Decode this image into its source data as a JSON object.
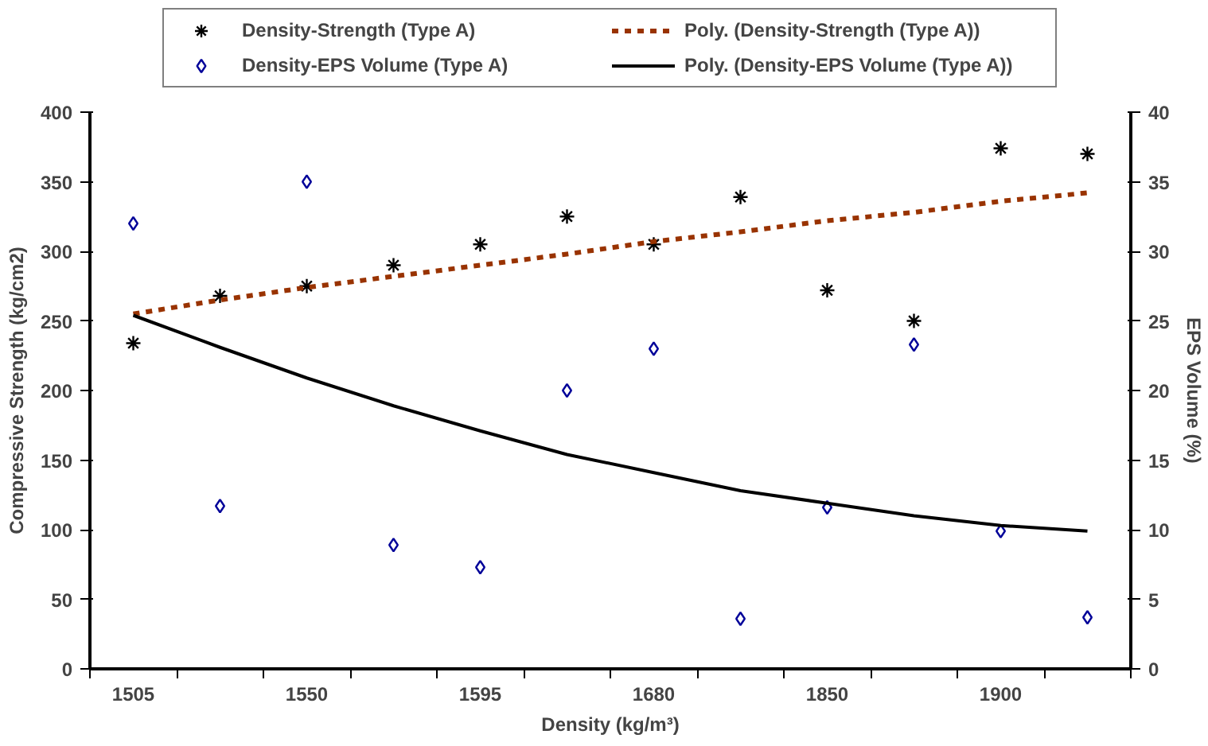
{
  "chart_data": {
    "type": "scatter",
    "xlabel": "Density (kg/m³)",
    "ylabel": "Compressive Strength (kg/cm2)",
    "y2label": "EPS Volume (%)",
    "categories": [
      "1505",
      null,
      "1550",
      null,
      "1595",
      null,
      "1680",
      null,
      "1850",
      null,
      "1900",
      null
    ],
    "series": [
      {
        "name": "Density-Strength (Type A)",
        "marker": "cross",
        "color": "#000000",
        "values": [
          234,
          268,
          275,
          290,
          305,
          325,
          305,
          339,
          272,
          250,
          374,
          370
        ]
      },
      {
        "name": "Density-EPS Volume (Type A)",
        "marker": "diamond",
        "color": "#000099",
        "axis": "y2",
        "values": [
          32,
          11.7,
          35,
          8.9,
          7.3,
          20,
          23,
          3.6,
          11.6,
          23.3,
          9.9,
          3.7
        ]
      },
      {
        "name": "Poly. (Density-Strength (Type A))",
        "type": "line",
        "line_style": "dashed",
        "color": "#993300",
        "values": [
          255,
          265,
          274,
          282,
          290,
          298,
          307,
          314,
          322,
          328,
          336,
          342
        ]
      },
      {
        "name": "Poly. (Density-EPS Volume (Type A))",
        "type": "line",
        "line_style": "solid",
        "color": "#000000",
        "axis": "y2",
        "values": [
          25.4,
          23.1,
          20.9,
          18.9,
          17.1,
          15.4,
          14.1,
          12.8,
          11.9,
          11.0,
          10.3,
          9.9
        ]
      }
    ],
    "ylim": [
      0,
      400
    ],
    "yticks": [
      0,
      50,
      100,
      150,
      200,
      250,
      300,
      350,
      400
    ],
    "y2lim": [
      0,
      40
    ],
    "y2ticks": [
      0,
      5,
      10,
      15,
      20,
      25,
      30,
      35,
      40
    ],
    "grid": false,
    "legend": "top"
  }
}
